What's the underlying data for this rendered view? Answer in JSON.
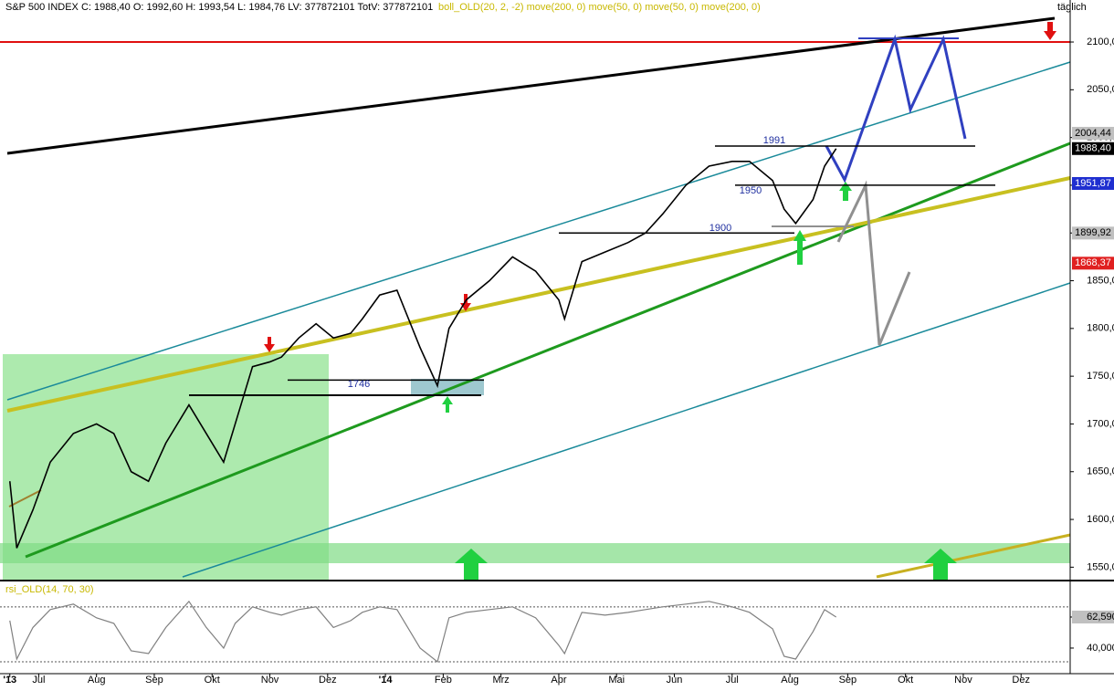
{
  "chart_data": [
    {
      "type": "line",
      "title": "S&P 500 INDEX C: 1988,40 O: 1992,60 H: 1993,54 L: 1984,76 LV: 377872101 TotV: 377872101",
      "subtitle": "boll_OLD(20, 2, -2) move(200, 0) move(50, 0) move(50, 0) move(200, 0)",
      "corner_label": "täglich",
      "x": [
        0.5,
        0.62,
        0.9,
        1.2,
        1.6,
        2.0,
        2.3,
        2.6,
        2.9,
        3.2,
        3.6,
        3.9,
        4.2,
        4.4,
        4.7,
        5.0,
        5.2,
        5.5,
        5.8,
        6.1,
        6.4,
        6.6,
        6.9,
        7.2,
        7.6,
        7.9,
        8.1,
        8.4,
        8.8,
        9.2,
        9.6,
        10.0,
        10.1,
        10.4,
        10.8,
        11.2,
        11.5,
        11.8,
        12.2,
        12.6,
        13.0,
        13.3,
        13.7,
        13.9,
        14.1,
        14.4,
        14.6,
        14.8
      ],
      "series": [
        {
          "name": "S&P 500 INDEX",
          "color": "#000000",
          "values": [
            1640,
            1570,
            1610,
            1660,
            1690,
            1700,
            1690,
            1650,
            1640,
            1680,
            1720,
            1690,
            1660,
            1700,
            1760,
            1765,
            1770,
            1790,
            1805,
            1790,
            1795,
            1810,
            1835,
            1840,
            1780,
            1740,
            1800,
            1830,
            1850,
            1875,
            1860,
            1830,
            1810,
            1870,
            1880,
            1890,
            1900,
            1920,
            1950,
            1970,
            1975,
            1975,
            1955,
            1925,
            1910,
            1935,
            1970,
            1988.4
          ]
        }
      ],
      "xlim": [
        0.33,
        18.85
      ],
      "xticks": [
        {
          "value": 0.5,
          "label": "'13"
        },
        {
          "value": 1,
          "label": "Jul"
        },
        {
          "value": 2,
          "label": "Aug"
        },
        {
          "value": 3,
          "label": "Sep"
        },
        {
          "value": 4,
          "label": "Okt"
        },
        {
          "value": 5,
          "label": "Nov"
        },
        {
          "value": 6,
          "label": "Dez"
        },
        {
          "value": 7,
          "label": "'14"
        },
        {
          "value": 8,
          "label": "Feb"
        },
        {
          "value": 9,
          "label": "Mrz"
        },
        {
          "value": 10,
          "label": "Apr"
        },
        {
          "value": 11,
          "label": "Mai"
        },
        {
          "value": 12,
          "label": "Jun"
        },
        {
          "value": 13,
          "label": "Jul"
        },
        {
          "value": 14,
          "label": "Aug"
        },
        {
          "value": 15,
          "label": "Sep"
        },
        {
          "value": 16,
          "label": "Okt"
        },
        {
          "value": 17,
          "label": "Nov"
        },
        {
          "value": 18,
          "label": "Dez"
        }
      ],
      "ylim": [
        1536,
        2144
      ],
      "yticks": [
        {
          "value": 1550,
          "label": "1550,00"
        },
        {
          "value": 1600,
          "label": "1600,00"
        },
        {
          "value": 1650,
          "label": "1650,00"
        },
        {
          "value": 1700,
          "label": "1700,00"
        },
        {
          "value": 1750,
          "label": "1750,00"
        },
        {
          "value": 1800,
          "label": "1800,00"
        },
        {
          "value": 1850,
          "label": "1850,00"
        },
        {
          "value": 1900,
          "label": "1900,00"
        },
        {
          "value": 1950,
          "label": "1950,00"
        },
        {
          "value": 2000,
          "label": "2000,00"
        },
        {
          "value": 2050,
          "label": "2050,00"
        },
        {
          "value": 2100,
          "label": "2100,00"
        }
      ],
      "price_tags": [
        {
          "value": 2004.44,
          "label": "2004,44",
          "color": "#c0c0c0"
        },
        {
          "value": 1988.4,
          "label": "1988,40",
          "color": "#000000"
        },
        {
          "value": 1951.87,
          "label": "1951,87",
          "color": "#1f2fd0"
        },
        {
          "value": 1899.92,
          "label": "1899,92",
          "color": "#c0c0c0"
        },
        {
          "value": 1868.37,
          "label": "1868,37",
          "color": "#e02020"
        }
      ],
      "levels": [
        {
          "value": 1991,
          "label": "1991"
        },
        {
          "value": 1950,
          "label": "1950"
        },
        {
          "value": 1900,
          "label": "1900"
        },
        {
          "value": 1746,
          "label": "1746"
        }
      ]
    },
    {
      "type": "line",
      "title": "rsi_OLD(14, 70, 30)",
      "x": [
        0.5,
        0.62,
        0.9,
        1.2,
        1.6,
        2.0,
        2.3,
        2.6,
        2.9,
        3.2,
        3.6,
        3.9,
        4.2,
        4.4,
        4.7,
        5.0,
        5.2,
        5.5,
        5.8,
        6.1,
        6.4,
        6.6,
        6.9,
        7.2,
        7.6,
        7.9,
        8.1,
        8.4,
        8.8,
        9.2,
        9.6,
        10.0,
        10.1,
        10.4,
        10.8,
        11.2,
        11.5,
        11.8,
        12.2,
        12.6,
        13.0,
        13.3,
        13.7,
        13.9,
        14.1,
        14.4,
        14.6,
        14.8
      ],
      "series": [
        {
          "name": "rsi_OLD",
          "color": "#808080",
          "values": [
            60,
            32,
            55,
            68,
            72,
            62,
            58,
            38,
            36,
            55,
            74,
            55,
            40,
            58,
            70,
            66,
            64,
            68,
            70,
            55,
            60,
            66,
            70,
            68,
            40,
            30,
            62,
            66,
            68,
            70,
            62,
            42,
            36,
            66,
            64,
            66,
            68,
            70,
            72,
            74,
            70,
            66,
            54,
            34,
            32,
            52,
            68,
            62.5905
          ]
        }
      ],
      "ylim": [
        22.7,
        86.5
      ],
      "yticks": [
        {
          "value": 62.5905,
          "label": "62,5905"
        },
        {
          "value": 40,
          "label": "40,0000"
        }
      ],
      "ref_lines": [
        70,
        30
      ]
    }
  ]
}
